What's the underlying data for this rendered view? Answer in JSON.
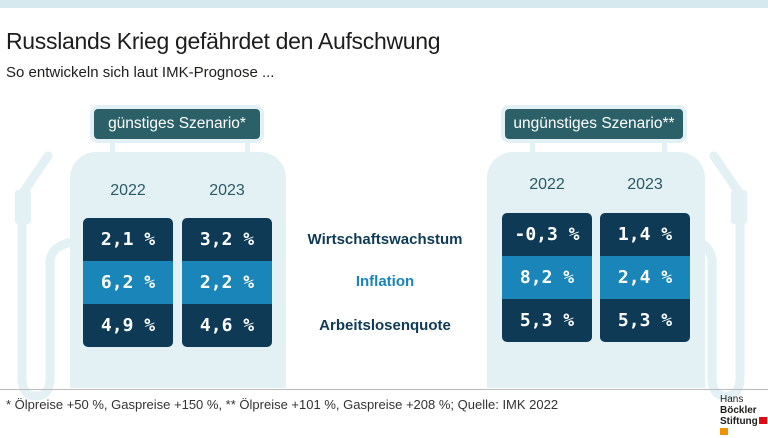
{
  "title": "Russlands Krieg gefährdet den Aufschwung",
  "subtitle": "So entwickeln sich laut IMK-Prognose ...",
  "row_labels": [
    "Wirtschaftswachstum",
    "Inflation",
    "Arbeitslosenquote"
  ],
  "colors": {
    "dark": "#0e3a55",
    "light": "#1a85b8",
    "label": "#2b6068",
    "pump": "#e3f1f4"
  },
  "scenarios": [
    {
      "label": "günstiges Szenario*",
      "years": [
        "2022",
        "2023"
      ],
      "values": [
        [
          "2,1 %",
          "6,2 %",
          "4,9 %"
        ],
        [
          "3,2 %",
          "2,2 %",
          "4,6 %"
        ]
      ]
    },
    {
      "label": "ungünstiges Szenario**",
      "years": [
        "2022",
        "2023"
      ],
      "values": [
        [
          "-0,3 %",
          "8,2 %",
          "5,3 %"
        ],
        [
          "1,4 %",
          "2,4 %",
          "5,3 %"
        ]
      ]
    }
  ],
  "footnote": "* Ölpreise +50 %, Gaspreise +150 %, ** Ölpreise +101 %, Gaspreise +208 %; Quelle: IMK 2022",
  "logo": {
    "line1a": "Hans ",
    "line1b": "Böckler",
    "line2": "Stiftung"
  }
}
